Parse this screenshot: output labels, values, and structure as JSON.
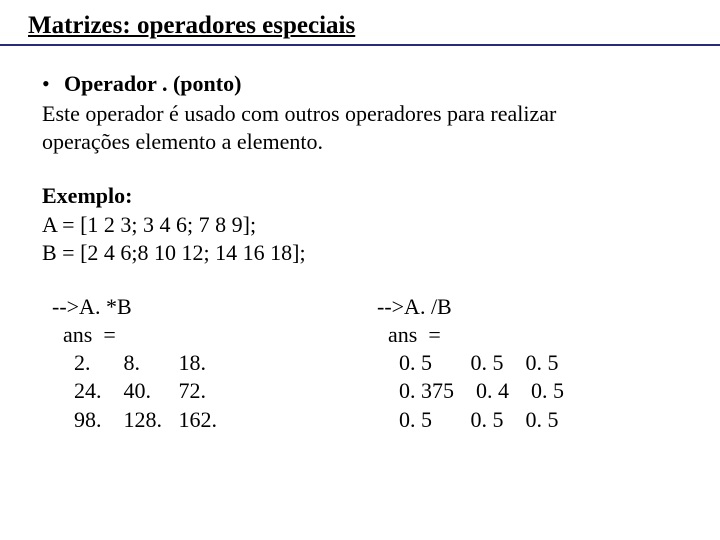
{
  "title": "Matrizes: operadores especiais",
  "bullet_label": "Operador . (ponto)",
  "operator_desc1": "Este operador é usado com outros operadores para realizar",
  "operator_desc2": "operações elemento a elemento.",
  "example_label": "Exemplo:",
  "matrix_a": "A = [1 2 3; 3 4 6; 7 8 9];",
  "matrix_b": "B = [2 4 6;8 10 12; 14 16 18];",
  "left_block": "-->A. *B\n  ans  =\n    2.      8.       18.\n    24.    40.     72.\n    98.    128.   162.",
  "right_block": "-->A. /B\n  ans  =\n    0. 5       0. 5    0. 5\n    0. 375    0. 4    0. 5\n    0. 5       0. 5    0. 5",
  "colors": {
    "text": "#000000",
    "background": "#ffffff",
    "rule": "#2a2a7a"
  },
  "fonts": {
    "family": "Times New Roman",
    "title_size_pt": 25,
    "body_size_pt": 22
  }
}
